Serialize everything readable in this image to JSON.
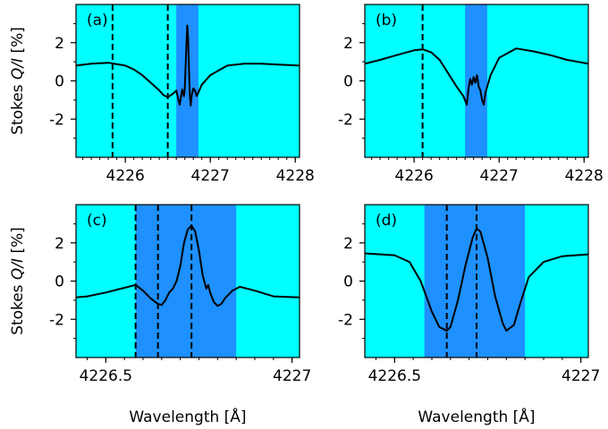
{
  "chart_data": [
    {
      "type": "line",
      "panel_label": "(a)",
      "xlim": [
        4225.42,
        4228.05
      ],
      "ylim": [
        -4,
        4
      ],
      "xticks": [
        4226,
        4227,
        4228
      ],
      "xtick_labels": [
        "4226",
        "4227",
        "4228"
      ],
      "xminor_step": 0.1,
      "yticks": [
        2,
        0,
        -2
      ],
      "ytick_labels": [
        "2",
        "0",
        "-2"
      ],
      "yminor": [
        3,
        1,
        -1,
        -3
      ],
      "ylabel": "Stokes Q/I [%]",
      "xlabel": "",
      "band": [
        4226.6,
        4226.86
      ],
      "vlines": [
        4225.85,
        4226.5
      ],
      "series": [
        {
          "x": [
            4225.42,
            4225.6,
            4225.8,
            4226.0,
            4226.1,
            4226.2,
            4226.3,
            4226.4,
            4226.45,
            4226.5,
            4226.55,
            4226.58,
            4226.6,
            4226.62,
            4226.64,
            4226.66,
            4226.67,
            4226.69,
            4226.7,
            4226.71,
            4226.72,
            4226.73,
            4226.74,
            4226.75,
            4226.76,
            4226.77,
            4226.78,
            4226.8,
            4226.82,
            4226.84,
            4226.86,
            4226.9,
            4227.0,
            4227.2,
            4227.4,
            4227.6,
            4227.8,
            4228.05
          ],
          "y": [
            0.8,
            0.9,
            0.95,
            0.8,
            0.6,
            0.3,
            -0.1,
            -0.5,
            -0.75,
            -0.85,
            -0.7,
            -0.6,
            -0.5,
            -0.9,
            -1.25,
            -0.7,
            -0.45,
            -0.8,
            -0.4,
            0.8,
            2.0,
            2.9,
            2.1,
            0.5,
            -0.8,
            -1.3,
            -0.8,
            -0.4,
            -0.5,
            -0.8,
            -0.6,
            -0.2,
            0.3,
            0.8,
            0.9,
            0.9,
            0.85,
            0.8
          ]
        }
      ]
    },
    {
      "type": "line",
      "panel_label": "(b)",
      "xlim": [
        4225.42,
        4228.05
      ],
      "ylim": [
        -4,
        4
      ],
      "xticks": [
        4226,
        4227,
        4228
      ],
      "xtick_labels": [
        "4226",
        "4227",
        "4228"
      ],
      "xminor_step": 0.1,
      "yticks": [
        2,
        0,
        -2
      ],
      "ytick_labels": [
        "2",
        "0",
        "-2"
      ],
      "yminor": [
        3,
        1,
        -1,
        -3
      ],
      "ylabel": "",
      "xlabel": "",
      "band": [
        4226.6,
        4226.86
      ],
      "vlines": [
        4226.1
      ],
      "series": [
        {
          "x": [
            4225.42,
            4225.6,
            4225.8,
            4226.0,
            4226.1,
            4226.2,
            4226.3,
            4226.4,
            4226.5,
            4226.58,
            4226.62,
            4226.64,
            4226.66,
            4226.68,
            4226.7,
            4226.72,
            4226.74,
            4226.76,
            4226.78,
            4226.8,
            4226.82,
            4226.84,
            4226.9,
            4227.0,
            4227.2,
            4227.4,
            4227.6,
            4227.8,
            4228.05
          ],
          "y": [
            0.9,
            1.1,
            1.35,
            1.6,
            1.65,
            1.5,
            1.1,
            0.4,
            -0.3,
            -0.8,
            -1.25,
            -0.4,
            0.1,
            -0.2,
            0.2,
            -0.1,
            0.3,
            -0.3,
            -0.5,
            -1.0,
            -1.25,
            -0.6,
            0.3,
            1.2,
            1.7,
            1.55,
            1.35,
            1.1,
            0.9
          ]
        }
      ]
    },
    {
      "type": "line",
      "panel_label": "(c)",
      "xlim": [
        4226.42,
        4227.02
      ],
      "ylim": [
        -4,
        4
      ],
      "xticks": [
        4226.5,
        4227
      ],
      "xtick_labels": [
        "4226.5",
        "4227"
      ],
      "xminor_step": 0.05,
      "yticks": [
        2,
        0,
        -2
      ],
      "ytick_labels": [
        "2",
        "0",
        "-2"
      ],
      "yminor": [
        3,
        1,
        -1,
        -3
      ],
      "ylabel": "Stokes Q/I [%]",
      "xlabel": "Wavelength [Å]",
      "band": [
        4226.58,
        4226.85
      ],
      "vlines": [
        4226.58,
        4226.64,
        4226.73
      ],
      "series": [
        {
          "x": [
            4226.42,
            4226.45,
            4226.5,
            4226.55,
            4226.58,
            4226.6,
            4226.62,
            4226.64,
            4226.65,
            4226.66,
            4226.67,
            4226.68,
            4226.69,
            4226.7,
            4226.71,
            4226.72,
            4226.73,
            4226.74,
            4226.75,
            4226.76,
            4226.77,
            4226.775,
            4226.78,
            4226.79,
            4226.8,
            4226.81,
            4226.82,
            4226.84,
            4226.86,
            4226.9,
            4226.95,
            4227.02
          ],
          "y": [
            -0.85,
            -0.8,
            -0.6,
            -0.35,
            -0.2,
            -0.5,
            -0.9,
            -1.2,
            -1.25,
            -1.0,
            -0.6,
            -0.4,
            0.0,
            0.8,
            2.0,
            2.7,
            2.9,
            2.6,
            1.6,
            0.3,
            -0.4,
            -0.2,
            -0.6,
            -1.1,
            -1.3,
            -1.2,
            -0.9,
            -0.5,
            -0.3,
            -0.5,
            -0.8,
            -0.85
          ]
        }
      ]
    },
    {
      "type": "line",
      "panel_label": "(d)",
      "xlim": [
        4226.42,
        4227.02
      ],
      "ylim": [
        -4,
        4
      ],
      "xticks": [
        4226.5,
        4227
      ],
      "xtick_labels": [
        "4226.5",
        "4227"
      ],
      "xminor_step": 0.05,
      "yticks": [
        2,
        0,
        -2
      ],
      "ytick_labels": [
        "2",
        "0",
        "-2"
      ],
      "yminor": [
        3,
        1,
        -1,
        -3
      ],
      "ylabel": "",
      "xlabel": "Wavelength [Å]",
      "band": [
        4226.58,
        4226.85
      ],
      "vlines": [
        4226.64,
        4226.72
      ],
      "series": [
        {
          "x": [
            4226.42,
            4226.5,
            4226.54,
            4226.57,
            4226.6,
            4226.62,
            4226.64,
            4226.65,
            4226.67,
            4226.69,
            4226.71,
            4226.72,
            4226.73,
            4226.75,
            4226.77,
            4226.79,
            4226.8,
            4226.82,
            4226.84,
            4226.86,
            4226.9,
            4226.95,
            4227.02
          ],
          "y": [
            1.45,
            1.35,
            1.0,
            0.0,
            -1.6,
            -2.4,
            -2.6,
            -2.4,
            -1.0,
            0.8,
            2.3,
            2.75,
            2.6,
            1.2,
            -0.8,
            -2.2,
            -2.6,
            -2.3,
            -1.0,
            0.2,
            1.0,
            1.3,
            1.4
          ]
        }
      ]
    }
  ],
  "colors": {
    "background": "#00ffff",
    "band": "#1e90ff",
    "line": "#000000"
  }
}
